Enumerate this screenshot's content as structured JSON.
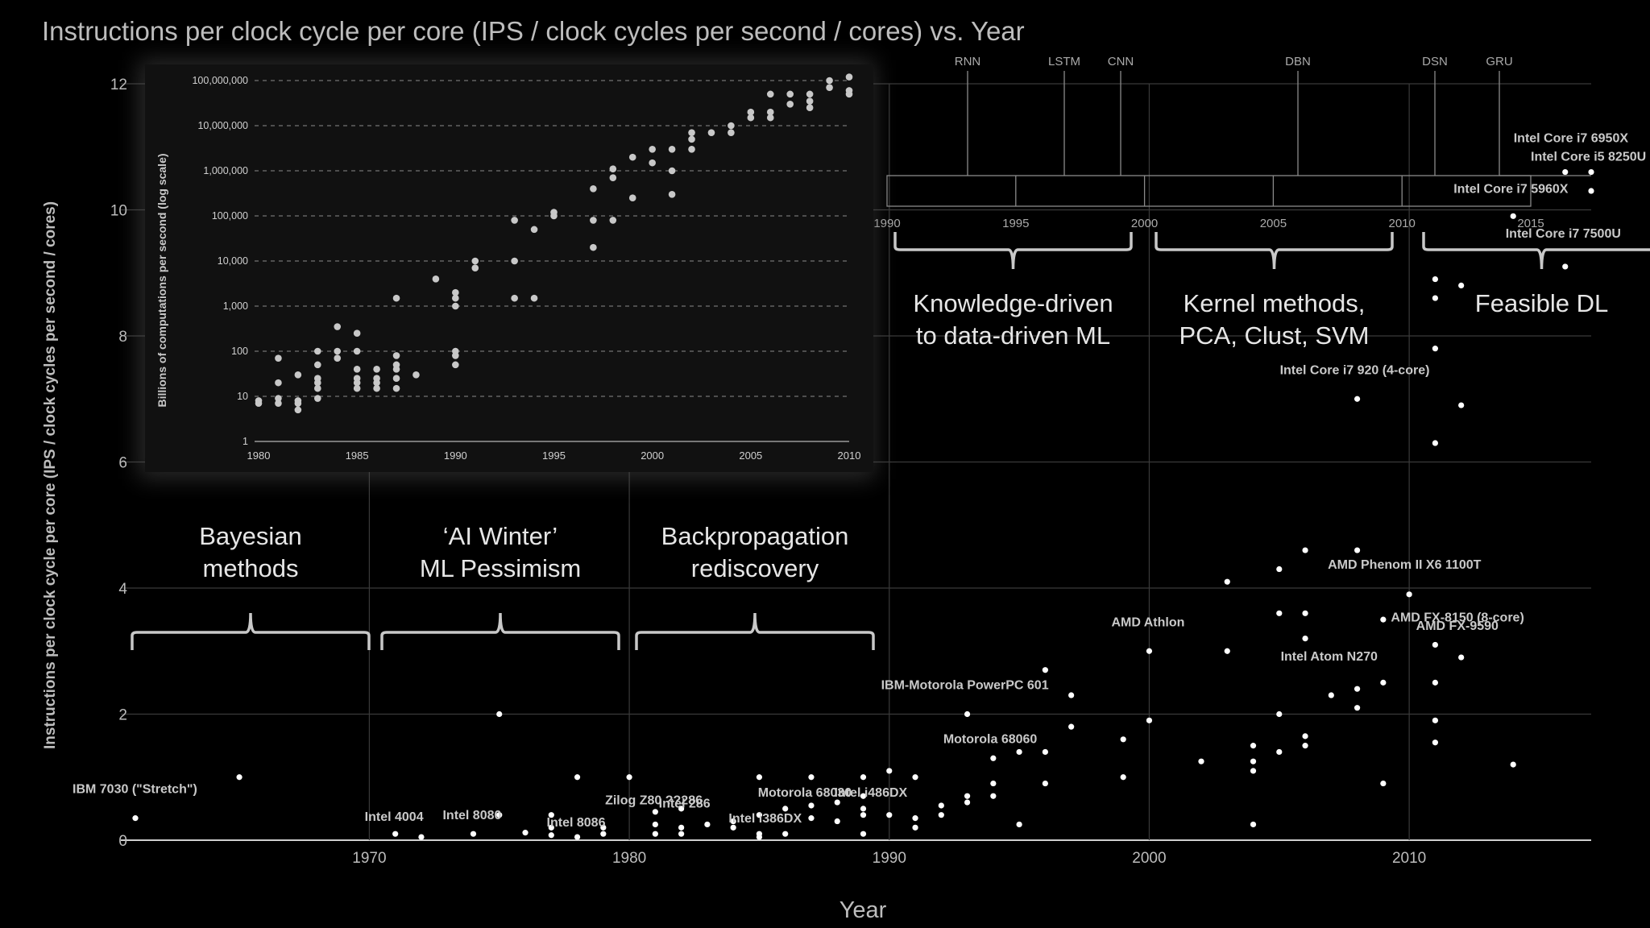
{
  "colors": {
    "background": "#000000",
    "grid": "#3a3a3a",
    "axis": "#cfcfcf",
    "text": "#bdbdbd",
    "point": "#ffffff",
    "inset_point": "#c8c8c8",
    "inset_bg": "#111111"
  },
  "chart_data": [
    {
      "type": "scatter",
      "title": "Instructions per clock cycle per core (IPS / clock cycles per second / cores) vs. Year",
      "xlabel": "Year",
      "ylabel": "Instructions per clock cycle per core (IPS / clock cycles per second / cores)",
      "xlim": [
        1961,
        2017
      ],
      "ylim": [
        0,
        12
      ],
      "x_ticks": [
        1970,
        1980,
        1990,
        2000,
        2010
      ],
      "y_ticks": [
        0,
        2,
        4,
        6,
        8,
        10,
        12
      ],
      "grid": true,
      "points": [
        [
          1961,
          0.35
        ],
        [
          1965,
          1.0
        ],
        [
          1971,
          0.1
        ],
        [
          1972,
          0.05
        ],
        [
          1974,
          0.1
        ],
        [
          1975,
          0.4
        ],
        [
          1975,
          2.0
        ],
        [
          1976,
          0.12
        ],
        [
          1977,
          0.08
        ],
        [
          1977,
          0.2
        ],
        [
          1977,
          0.4
        ],
        [
          1978,
          0.05
        ],
        [
          1978,
          1.0
        ],
        [
          1979,
          0.1
        ],
        [
          1979,
          0.2
        ],
        [
          1980,
          1.0
        ],
        [
          1981,
          0.1
        ],
        [
          1981,
          0.25
        ],
        [
          1981,
          0.45
        ],
        [
          1982,
          0.1
        ],
        [
          1982,
          0.2
        ],
        [
          1982,
          0.5
        ],
        [
          1983,
          0.25
        ],
        [
          1984,
          0.2
        ],
        [
          1984,
          0.3
        ],
        [
          1985,
          0.05
        ],
        [
          1985,
          0.1
        ],
        [
          1985,
          0.4
        ],
        [
          1985,
          1.0
        ],
        [
          1986,
          0.1
        ],
        [
          1986,
          0.5
        ],
        [
          1987,
          0.35
        ],
        [
          1987,
          0.55
        ],
        [
          1987,
          1.0
        ],
        [
          1988,
          0.3
        ],
        [
          1988,
          0.6
        ],
        [
          1989,
          0.1
        ],
        [
          1989,
          0.4
        ],
        [
          1989,
          0.5
        ],
        [
          1989,
          0.7
        ],
        [
          1989,
          1.0
        ],
        [
          1990,
          0.4
        ],
        [
          1990,
          1.1
        ],
        [
          1991,
          0.2
        ],
        [
          1991,
          0.35
        ],
        [
          1991,
          1.0
        ],
        [
          1992,
          0.4
        ],
        [
          1992,
          0.55
        ],
        [
          1993,
          0.6
        ],
        [
          1993,
          0.7
        ],
        [
          1993,
          2.0
        ],
        [
          1994,
          0.7
        ],
        [
          1994,
          0.9
        ],
        [
          1994,
          1.3
        ],
        [
          1995,
          0.25
        ],
        [
          1995,
          1.4
        ],
        [
          1996,
          0.9
        ],
        [
          1996,
          1.4
        ],
        [
          1996,
          2.7
        ],
        [
          1997,
          1.8
        ],
        [
          1997,
          2.3
        ],
        [
          1999,
          1.0
        ],
        [
          1999,
          1.6
        ],
        [
          2000,
          1.9
        ],
        [
          2000,
          3.0
        ],
        [
          2002,
          1.25
        ],
        [
          2003,
          3.0
        ],
        [
          2003,
          4.1
        ],
        [
          2004,
          0.25
        ],
        [
          2004,
          1.1
        ],
        [
          2004,
          1.25
        ],
        [
          2004,
          1.5
        ],
        [
          2005,
          1.4
        ],
        [
          2005,
          2.0
        ],
        [
          2005,
          3.6
        ],
        [
          2005,
          4.3
        ],
        [
          2006,
          1.5
        ],
        [
          2006,
          1.65
        ],
        [
          2006,
          3.2
        ],
        [
          2006,
          3.6
        ],
        [
          2006,
          4.6
        ],
        [
          2007,
          2.3
        ],
        [
          2008,
          2.1
        ],
        [
          2008,
          2.4
        ],
        [
          2008,
          4.6
        ],
        [
          2008,
          7.0
        ],
        [
          2009,
          0.9
        ],
        [
          2009,
          2.5
        ],
        [
          2009,
          3.5
        ],
        [
          2010,
          3.9
        ],
        [
          2011,
          1.55
        ],
        [
          2011,
          1.9
        ],
        [
          2011,
          2.5
        ],
        [
          2011,
          3.1
        ],
        [
          2011,
          6.3
        ],
        [
          2011,
          7.8
        ],
        [
          2011,
          8.6
        ],
        [
          2011,
          8.9
        ],
        [
          2012,
          2.9
        ],
        [
          2012,
          6.9
        ],
        [
          2012,
          8.8
        ],
        [
          2014,
          1.2
        ],
        [
          2014,
          9.9
        ],
        [
          2016,
          9.1
        ],
        [
          2016,
          10.6
        ],
        [
          2017,
          10.3
        ],
        [
          2017,
          10.6
        ]
      ],
      "labels": [
        {
          "text": "IBM 7030 (\"Stretch\")",
          "x": 1961,
          "y": 0.35
        },
        {
          "text": "Intel 4004",
          "x": 1971,
          "y": 0.1
        },
        {
          "text": "Intel 8080",
          "x": 1974,
          "y": 0.1
        },
        {
          "text": "Intel 8086",
          "x": 1978,
          "y": 0.05
        },
        {
          "text": "Zilog Z80 ??286",
          "x": 1980,
          "y": 0.25
        },
        {
          "text": "Intel 286",
          "x": 1982,
          "y": 0.2
        },
        {
          "text": "Intel i386DX",
          "x": 1985,
          "y": 0.1
        },
        {
          "text": "Motorola 68030",
          "x": 1986,
          "y": 0.5
        },
        {
          "text": "Intel i486DX",
          "x": 1989,
          "y": 0.5
        },
        {
          "text": "IBM-Motorola PowerPC 601",
          "x": 1993,
          "y": 2.0
        },
        {
          "text": "Motorola 68060",
          "x": 1994,
          "y": 1.3
        },
        {
          "text": "AMD Athlon",
          "x": 2000,
          "y": 3.0
        },
        {
          "text": "Intel Core i7 920 (4-core)",
          "x": 2008,
          "y": 7.0
        },
        {
          "text": "AMD Phenom II X6 1100T",
          "x": 2010,
          "y": 3.9
        },
        {
          "text": "AMD FX-8150 (8-core)",
          "x": 2011,
          "y": 3.1
        },
        {
          "text": "AMD FX-9590",
          "x": 2012,
          "y": 2.9
        },
        {
          "text": "Intel Atom N270",
          "x": 2008,
          "y": 2.4
        },
        {
          "text": "Intel Core i7 6950X",
          "x": 2016,
          "y": 10.6
        },
        {
          "text": "Intel Core i5 8250U",
          "x": 2017,
          "y": 10.6
        },
        {
          "text": "Intel Core i7 5960X",
          "x": 2014,
          "y": 9.9
        },
        {
          "text": "Intel Core i7 7500U",
          "x": 2016,
          "y": 9.1
        }
      ]
    },
    {
      "type": "scatter",
      "title": "",
      "xlabel": "",
      "ylabel": "Billions of computations per second (log scale)",
      "xlim": [
        1980,
        2010
      ],
      "ylim": [
        1,
        100000000
      ],
      "log_y": true,
      "x_ticks": [
        1980,
        1985,
        1990,
        1995,
        2000,
        2005,
        2010
      ],
      "y_ticks": [
        "1",
        "10",
        "100",
        "1,000",
        "10,000",
        "100,000",
        "1,000,000",
        "10,000,000",
        "100,000,000"
      ],
      "grid": true,
      "points": [
        [
          1980,
          7
        ],
        [
          1980,
          8
        ],
        [
          1981,
          7
        ],
        [
          1981,
          9
        ],
        [
          1981,
          20
        ],
        [
          1981,
          70
        ],
        [
          1982,
          5
        ],
        [
          1982,
          7
        ],
        [
          1982,
          8
        ],
        [
          1982,
          30
        ],
        [
          1983,
          9
        ],
        [
          1983,
          15
        ],
        [
          1983,
          20
        ],
        [
          1983,
          25
        ],
        [
          1983,
          50
        ],
        [
          1983,
          100
        ],
        [
          1984,
          70
        ],
        [
          1984,
          100
        ],
        [
          1984,
          350
        ],
        [
          1985,
          15
        ],
        [
          1985,
          20
        ],
        [
          1985,
          25
        ],
        [
          1985,
          40
        ],
        [
          1985,
          100
        ],
        [
          1985,
          250
        ],
        [
          1986,
          15
        ],
        [
          1986,
          20
        ],
        [
          1986,
          25
        ],
        [
          1986,
          40
        ],
        [
          1987,
          15
        ],
        [
          1987,
          25
        ],
        [
          1987,
          40
        ],
        [
          1987,
          50
        ],
        [
          1987,
          80
        ],
        [
          1987,
          1500
        ],
        [
          1988,
          30
        ],
        [
          1989,
          4000
        ],
        [
          1990,
          50
        ],
        [
          1990,
          80
        ],
        [
          1990,
          100
        ],
        [
          1990,
          1000
        ],
        [
          1990,
          1500
        ],
        [
          1990,
          2000
        ],
        [
          1991,
          7000
        ],
        [
          1991,
          10000
        ],
        [
          1993,
          1500
        ],
        [
          1993,
          10000
        ],
        [
          1993,
          80000
        ],
        [
          1994,
          1500
        ],
        [
          1994,
          50000
        ],
        [
          1995,
          100000
        ],
        [
          1995,
          120000
        ],
        [
          1997,
          20000
        ],
        [
          1997,
          80000
        ],
        [
          1997,
          400000
        ],
        [
          1998,
          80000
        ],
        [
          1998,
          700000
        ],
        [
          1998,
          1100000
        ],
        [
          1999,
          250000
        ],
        [
          1999,
          2000000
        ],
        [
          2000,
          1500000
        ],
        [
          2000,
          3000000
        ],
        [
          2001,
          300000
        ],
        [
          2001,
          1000000
        ],
        [
          2001,
          3000000
        ],
        [
          2002,
          3000000
        ],
        [
          2002,
          5000000
        ],
        [
          2002,
          7000000
        ],
        [
          2003,
          7000000
        ],
        [
          2004,
          7000000
        ],
        [
          2004,
          10000000
        ],
        [
          2005,
          15000000
        ],
        [
          2005,
          20000000
        ],
        [
          2006,
          15000000
        ],
        [
          2006,
          20000000
        ],
        [
          2006,
          50000000
        ],
        [
          2007,
          30000000
        ],
        [
          2007,
          50000000
        ],
        [
          2008,
          25000000
        ],
        [
          2008,
          35000000
        ],
        [
          2008,
          50000000
        ],
        [
          2009,
          70000000
        ],
        [
          2009,
          100000000
        ],
        [
          2010,
          50000000
        ],
        [
          2010,
          60000000
        ],
        [
          2010,
          120000000
        ]
      ]
    }
  ],
  "timeline": {
    "methods": [
      "RNN",
      "LSTM",
      "CNN",
      "DBN",
      "DSN",
      "GRU"
    ],
    "years": [
      "1990",
      "1995",
      "2000",
      "2005",
      "2010",
      "2015"
    ]
  },
  "eras": [
    {
      "line1": "Bayesian",
      "line2": "methods"
    },
    {
      "line1": "‘AI Winter’",
      "line2": "ML Pessimism"
    },
    {
      "line1": "Backpropagation",
      "line2": "rediscovery"
    },
    {
      "line1": "Knowledge-driven",
      "line2": "to data-driven ML"
    },
    {
      "line1": "Kernel methods,",
      "line2": "PCA, Clust, SVM"
    },
    {
      "line1": "Feasible DL",
      "line2": ""
    }
  ]
}
